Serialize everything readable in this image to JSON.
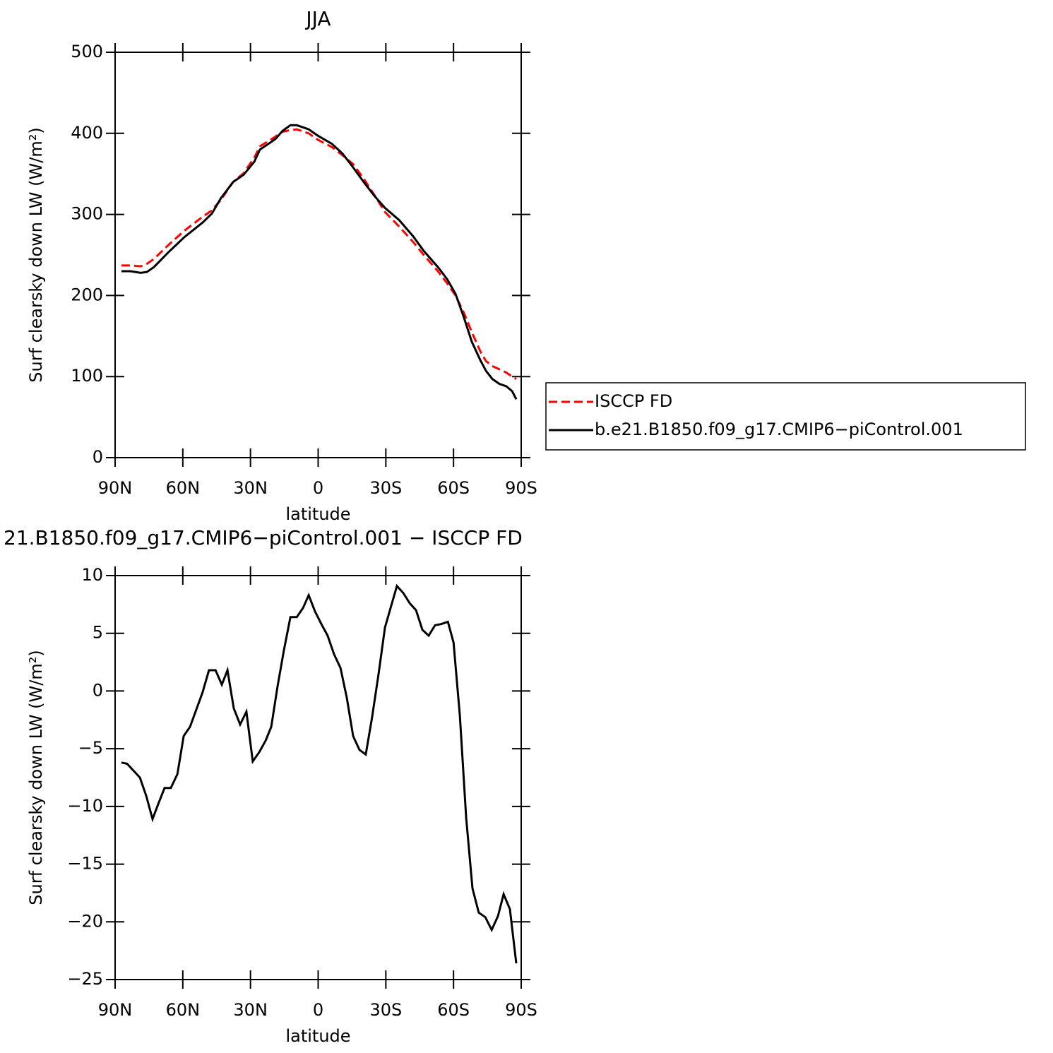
{
  "chart_data": [
    {
      "type": "line",
      "title": "JJA",
      "xlabel": "latitude",
      "ylabel": "Surf clearsky down LW (W/m²)",
      "x": [
        87.2,
        83.1,
        78.7,
        75.9,
        72.8,
        66.5,
        59.3,
        51.2,
        47.1,
        43.1,
        37.7,
        33.0,
        28.3,
        25.8,
        18.9,
        15.8,
        12.3,
        9.5,
        4.2,
        0.1,
        -6.1,
        -10.8,
        -15.5,
        -20.2,
        -24.9,
        -29.6,
        -35.9,
        -42.1,
        -46.8,
        -53.1,
        -57.2,
        -60.9,
        -64.7,
        -68.1,
        -71.9,
        -74.4,
        -77.2,
        -80.3,
        -83.4,
        -86.0,
        -87.8
      ],
      "series": [
        {
          "name": "ISCCP FD",
          "color": "#ff0000",
          "linestyle": "dashed",
          "values": [
            237,
            237,
            236,
            239,
            245,
            262,
            280,
            297,
            305,
            318,
            340,
            351,
            370,
            384,
            396,
            402,
            404,
            405,
            400,
            392,
            383,
            373,
            362,
            344,
            324,
            303,
            285,
            266,
            250,
            230,
            215,
            200,
            178,
            155,
            131,
            119,
            113,
            109,
            105,
            100,
            97
          ]
        },
        {
          "name": "b.e21.B1850.f09_g17.CMIP6−piControl.001",
          "color": "#000000",
          "linestyle": "solid",
          "values": [
            230,
            230,
            228,
            229,
            235,
            253,
            272,
            290,
            301,
            320,
            340,
            349,
            365,
            380,
            393,
            403,
            410,
            410,
            405,
            397,
            387,
            375,
            358,
            340,
            323,
            308,
            293,
            273,
            255,
            235,
            220,
            202,
            172,
            143,
            120,
            107,
            97,
            91,
            88,
            82,
            72
          ]
        }
      ],
      "xlim": [
        90,
        -90
      ],
      "xticks": [
        {
          "value": 90,
          "label": "90N"
        },
        {
          "value": 60,
          "label": "60N"
        },
        {
          "value": 30,
          "label": "30N"
        },
        0,
        {
          "value": -30,
          "label": "30S"
        },
        {
          "value": -60,
          "label": "60S"
        },
        {
          "value": -90,
          "label": "90S"
        }
      ],
      "ylim": [
        0,
        500
      ],
      "yticks": [
        0,
        100,
        200,
        300,
        400,
        500
      ],
      "legend": "right"
    },
    {
      "type": "line",
      "title": "21.B1850.f09_g17.CMIP6−piControl.001 − ISCCP FD",
      "xlabel": "latitude",
      "ylabel": "Surf clearsky down LW (W/m²)",
      "x": [
        87.2,
        84.7,
        79.0,
        76.2,
        73.4,
        70.9,
        68.1,
        65.3,
        62.4,
        59.6,
        56.8,
        51.2,
        48.4,
        45.5,
        42.7,
        40.2,
        37.4,
        34.6,
        31.8,
        29.0,
        26.1,
        23.3,
        20.8,
        18.0,
        15.2,
        12.3,
        9.5,
        6.7,
        4.2,
        1.4,
        -1.4,
        -4.2,
        -7.0,
        -9.9,
        -12.7,
        -15.5,
        -18.3,
        -21.1,
        -23.9,
        -26.8,
        -29.6,
        -32.4,
        -34.9,
        -37.7,
        -40.6,
        -43.4,
        -46.2,
        -49.0,
        -51.8,
        -54.6,
        -57.5,
        -60.0,
        -62.8,
        -65.6,
        -68.4,
        -71.2,
        -74.1,
        -76.9,
        -79.7,
        -82.2,
        -85.0,
        -87.8
      ],
      "series": [
        {
          "color": "#000000",
          "linestyle": "solid",
          "values": [
            -6.2,
            -6.3,
            -7.5,
            -9.1,
            -11.1,
            -9.8,
            -8.4,
            -8.4,
            -7.2,
            -3.9,
            -3.1,
            -0.1,
            1.8,
            1.8,
            0.55,
            1.8,
            -1.5,
            -2.9,
            -1.8,
            -6.1,
            -5.3,
            -4.3,
            -3.1,
            0.4,
            3.5,
            6.4,
            6.4,
            7.2,
            8.3,
            6.9,
            5.8,
            4.8,
            3.2,
            2.0,
            -0.6,
            -3.9,
            -5.1,
            -5.5,
            -2.3,
            1.5,
            5.5,
            7.4,
            9.1,
            8.5,
            7.6,
            7.0,
            5.3,
            4.8,
            5.7,
            5.8,
            6.0,
            4.2,
            -2.1,
            -11,
            -17.1,
            -19.2,
            -19.6,
            -20.7,
            -19.5,
            -17.6,
            -18.9,
            -23.6
          ]
        }
      ],
      "xlim": [
        90,
        -90
      ],
      "xticks": [
        {
          "value": 90,
          "label": "90N"
        },
        {
          "value": 60,
          "label": "60N"
        },
        {
          "value": 30,
          "label": "30N"
        },
        0,
        {
          "value": -30,
          "label": "30S"
        },
        {
          "value": -60,
          "label": "60S"
        },
        {
          "value": -90,
          "label": "90S"
        }
      ],
      "ylim": [
        -25,
        10
      ],
      "yticks": [
        {
          "value": -25,
          "label": "−25"
        },
        {
          "value": -20,
          "label": "−20"
        },
        {
          "value": -15,
          "label": "−15"
        },
        {
          "value": -10,
          "label": "−10"
        },
        {
          "value": -5,
          "label": "−5"
        },
        0,
        5,
        10
      ]
    }
  ]
}
